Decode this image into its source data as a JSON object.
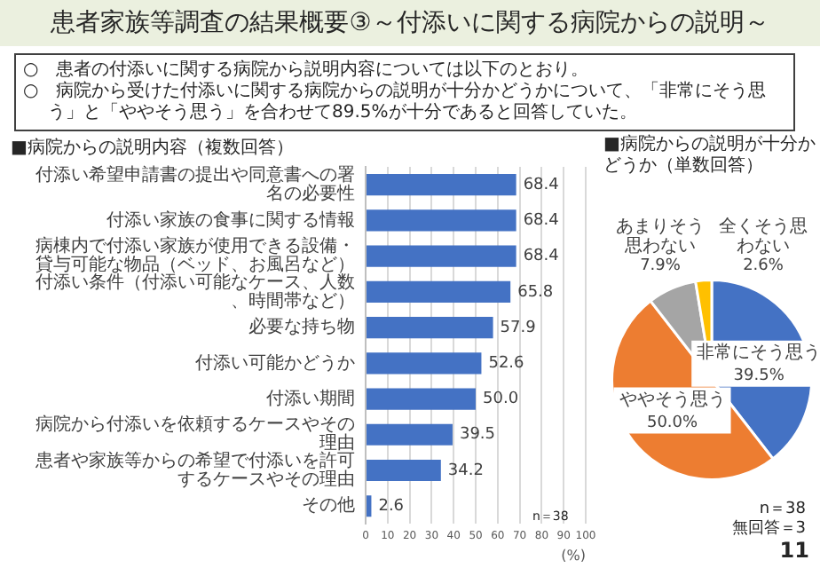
{
  "chart_data": [
    {
      "type": "bar",
      "orientation": "horizontal",
      "title": "患者家族等調査の結果概要③～付添いに関する病院からの説明～",
      "subtitle": "■病院からの説明内容（複数回答）",
      "categories": [
        "付添い希望申請書の提出や同意書への署名の必要性",
        "付添い家族の食事に関する情報",
        "病棟内で付添い家族が使用できる設備・貸与可能な物品（ベッド、お風呂など）",
        "付添い条件（付添い可能なケース、人数、時間帯など）",
        "必要な持ち物",
        "付添い可能かどうか",
        "付添い期間",
        "病院から付添いを依頼するケースやその理由",
        "患者や家族等からの希望で付添いを許可するケースやその理由",
        "その他"
      ],
      "values": [
        68.4,
        68.4,
        68.4,
        65.8,
        57.9,
        52.6,
        50.0,
        39.5,
        34.2,
        2.6
      ],
      "value_labels": [
        "68.4",
        "68.4",
        "68.4",
        "65.8",
        "57.9",
        "52.6",
        "50.0",
        "39.5",
        "34.2",
        "2.6"
      ],
      "color": "#4472c4",
      "xlim": [
        0,
        100
      ],
      "xticks": [
        0,
        10,
        20,
        30,
        40,
        50,
        60,
        70,
        80,
        90,
        100
      ],
      "xlabel": "(%)",
      "grid": "x",
      "annotations": [
        "○　患者の付添いに関する病院から説明内容については以下のとおり。",
        "○　病院から受けた付添いに関する病院からの説明が十分かどうかについて、「非常にそう思う」と「ややそう思う」を合わせて89.5%が十分であると回答していた。",
        "n＝38",
        "11"
      ]
    },
    {
      "type": "pie",
      "title": "■病院からの説明が十分かどうか（単数回答）",
      "categories": [
        "非常にそう思う",
        "ややそう思う",
        "あまりそう思わない",
        "全くそう思わない"
      ],
      "values": [
        39.5,
        50.0,
        7.9,
        2.6
      ],
      "colors": [
        "#4472c4",
        "#ed7d31",
        "#a5a5a5",
        "#ffc000"
      ],
      "value_labels": [
        "39.5%",
        "50.0%",
        "7.9%",
        "2.6%"
      ],
      "annotations": [
        "n＝38",
        "無回答＝3"
      ]
    }
  ]
}
